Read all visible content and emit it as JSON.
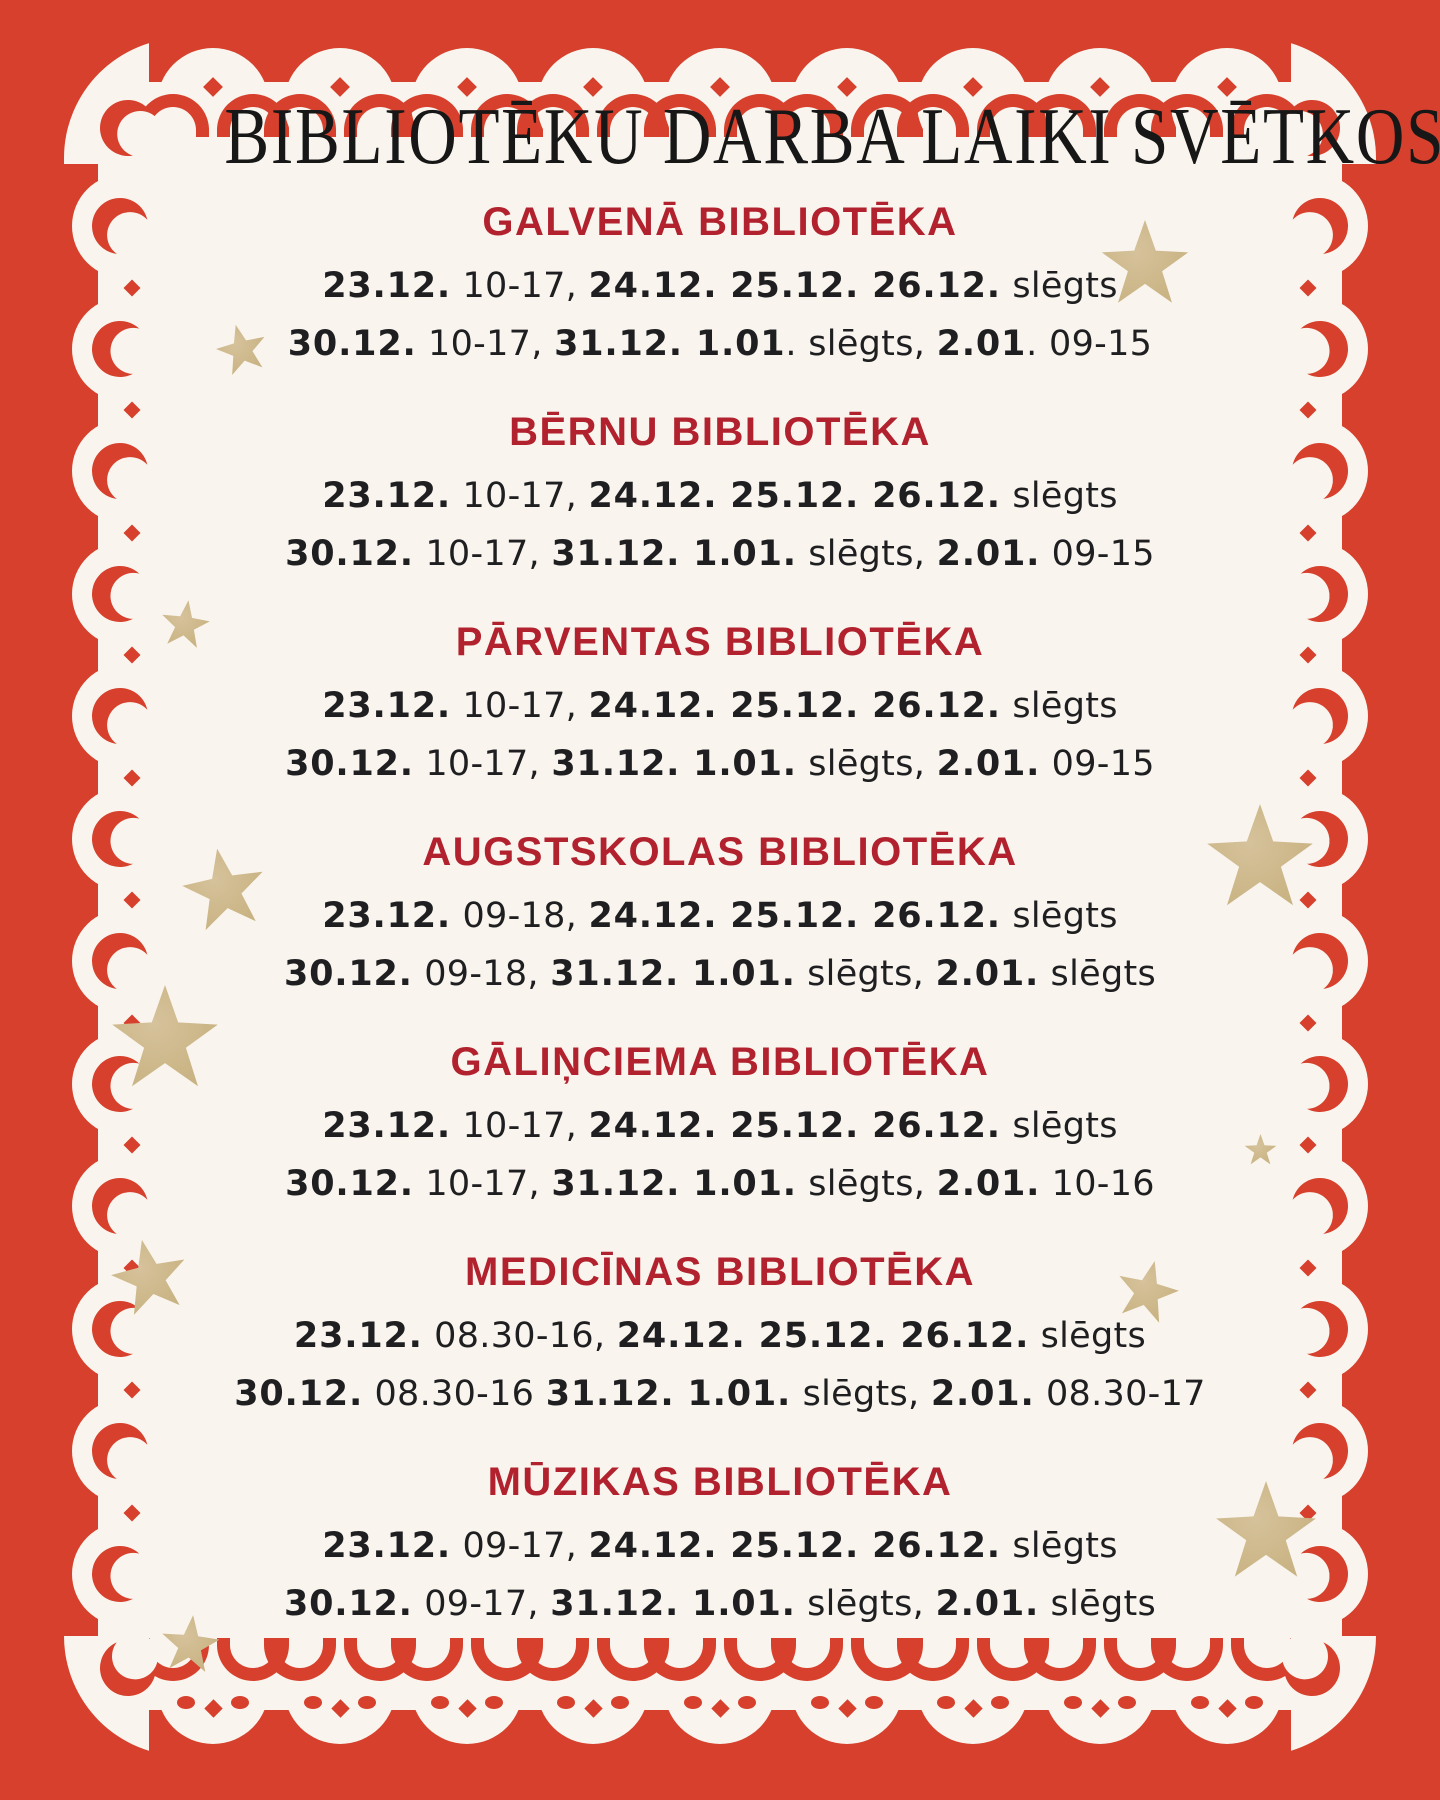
{
  "poster": {
    "title": "BIBLIOTĒKU DARBA LAIKI SVĒTKOS",
    "sections": [
      {
        "heading": "GALVENĀ BIBLIOTĒKA",
        "lines": [
          [
            {
              "text": "23.12.",
              "bold": true
            },
            {
              "text": " 10-17, ",
              "bold": false
            },
            {
              "text": "24.12. 25.12. 26.12.",
              "bold": true
            },
            {
              "text": " slēgts",
              "bold": false
            }
          ],
          [
            {
              "text": "30.12.",
              "bold": true
            },
            {
              "text": " 10-17, ",
              "bold": false
            },
            {
              "text": "31.12. 1.01",
              "bold": true
            },
            {
              "text": ". slēgts, ",
              "bold": false
            },
            {
              "text": "2.01",
              "bold": true
            },
            {
              "text": ". 09-15",
              "bold": false
            }
          ]
        ]
      },
      {
        "heading": "BĒRNU BIBLIOTĒKA",
        "lines": [
          [
            {
              "text": "23.12.",
              "bold": true
            },
            {
              "text": " 10-17, ",
              "bold": false
            },
            {
              "text": "24.12. 25.12. 26.12.",
              "bold": true
            },
            {
              "text": " slēgts",
              "bold": false
            }
          ],
          [
            {
              "text": "30.12.",
              "bold": true
            },
            {
              "text": " 10-17, ",
              "bold": false
            },
            {
              "text": "31.12. 1.01.",
              "bold": true
            },
            {
              "text": " slēgts, ",
              "bold": false
            },
            {
              "text": "2.01.",
              "bold": true
            },
            {
              "text": " 09-15",
              "bold": false
            }
          ]
        ]
      },
      {
        "heading": "PĀRVENTAS BIBLIOTĒKA",
        "lines": [
          [
            {
              "text": "23.12.",
              "bold": true
            },
            {
              "text": " 10-17, ",
              "bold": false
            },
            {
              "text": "24.12. 25.12. 26.12.",
              "bold": true
            },
            {
              "text": " slēgts",
              "bold": false
            }
          ],
          [
            {
              "text": "30.12.",
              "bold": true
            },
            {
              "text": " 10-17, ",
              "bold": false
            },
            {
              "text": "31.12. 1.01.",
              "bold": true
            },
            {
              "text": " slēgts, ",
              "bold": false
            },
            {
              "text": "2.01.",
              "bold": true
            },
            {
              "text": " 09-15",
              "bold": false
            }
          ]
        ]
      },
      {
        "heading": "AUGSTSKOLAS BIBLIOTĒKA",
        "lines": [
          [
            {
              "text": "23.12.",
              "bold": true
            },
            {
              "text": " 09-18, ",
              "bold": false
            },
            {
              "text": "24.12. 25.12. 26.12.",
              "bold": true
            },
            {
              "text": " slēgts",
              "bold": false
            }
          ],
          [
            {
              "text": "30.12.",
              "bold": true
            },
            {
              "text": " 09-18, ",
              "bold": false
            },
            {
              "text": "31.12. 1.01.",
              "bold": true
            },
            {
              "text": " slēgts, ",
              "bold": false
            },
            {
              "text": "2.01.",
              "bold": true
            },
            {
              "text": " slēgts",
              "bold": false
            }
          ]
        ]
      },
      {
        "heading": "GĀLIŅCIEMA BIBLIOTĒKA",
        "lines": [
          [
            {
              "text": "23.12.",
              "bold": true
            },
            {
              "text": " 10-17, ",
              "bold": false
            },
            {
              "text": "24.12. 25.12. 26.12.",
              "bold": true
            },
            {
              "text": " slēgts",
              "bold": false
            }
          ],
          [
            {
              "text": "30.12.",
              "bold": true
            },
            {
              "text": " 10-17, ",
              "bold": false
            },
            {
              "text": "31.12. 1.01.",
              "bold": true
            },
            {
              "text": " slēgts, ",
              "bold": false
            },
            {
              "text": "2.01.",
              "bold": true
            },
            {
              "text": " 10-16",
              "bold": false
            }
          ]
        ]
      },
      {
        "heading": "MEDICĪNAS BIBLIOTĒKA",
        "lines": [
          [
            {
              "text": "23.12.",
              "bold": true
            },
            {
              "text": " 08.30-16, ",
              "bold": false
            },
            {
              "text": "24.12. 25.12. 26.12.",
              "bold": true
            },
            {
              "text": " slēgts",
              "bold": false
            }
          ],
          [
            {
              "text": "30.12.",
              "bold": true
            },
            {
              "text": " 08.30-16 ",
              "bold": false
            },
            {
              "text": "31.12. 1.01.",
              "bold": true
            },
            {
              "text": " slēgts, ",
              "bold": false
            },
            {
              "text": "2.01.",
              "bold": true
            },
            {
              "text": " 08.30-17",
              "bold": false
            }
          ]
        ]
      },
      {
        "heading": "MŪZIKAS BIBLIOTĒKA",
        "lines": [
          [
            {
              "text": "23.12.",
              "bold": true
            },
            {
              "text": " 09-17, ",
              "bold": false
            },
            {
              "text": "24.12. 25.12. 26.12.",
              "bold": true
            },
            {
              "text": " slēgts",
              "bold": false
            }
          ],
          [
            {
              "text": "30.12.",
              "bold": true
            },
            {
              "text": " 09-17, ",
              "bold": false
            },
            {
              "text": "31.12. 1.01.",
              "bold": true
            },
            {
              "text": " slēgts, ",
              "bold": false
            },
            {
              "text": "2.01.",
              "bold": true
            },
            {
              "text": " slēgts",
              "bold": false
            }
          ]
        ]
      }
    ]
  },
  "colors": {
    "background_red": "#d6402c",
    "panel": "#f9f5ee",
    "heading_red": "#b2222e",
    "text": "#1f1f21",
    "star_gold": "#c9b383"
  }
}
